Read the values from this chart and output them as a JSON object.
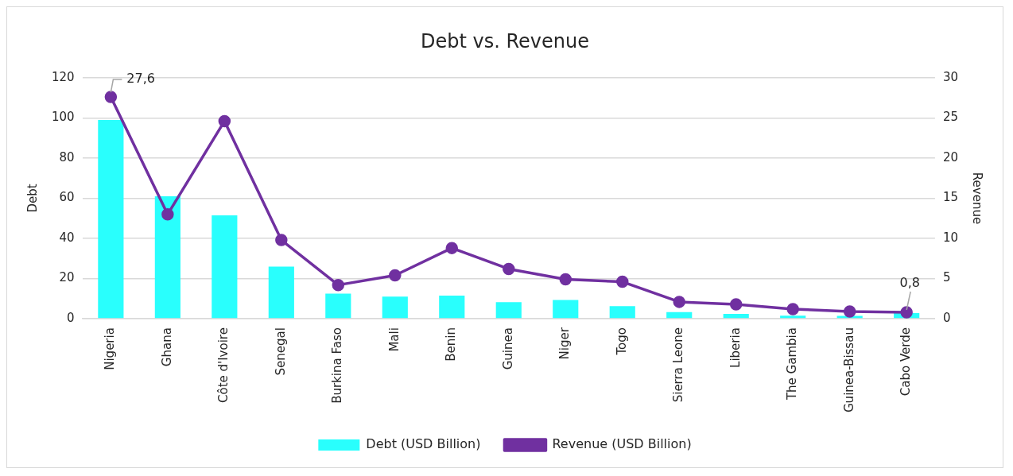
{
  "chart_data": {
    "type": "bar",
    "title": "Debt vs. Revenue",
    "ylabel": "Debt",
    "y2label": "Revenue",
    "categories": [
      "Nigeria",
      "Ghana",
      "Côte d'Ivoire",
      "Senegal",
      "Burkina Faso",
      "Mali",
      "Benin",
      "Guinea",
      "Niger",
      "Togo",
      "Sierra Leone",
      "Liberia",
      "The Gambia",
      "Guinea-Bissau",
      "Cabo Verde"
    ],
    "series": [
      {
        "name": "Debt (USD Billion)",
        "color": "#29fffd",
        "values": [
          99,
          61,
          51.5,
          26,
          12.5,
          11,
          11.5,
          8.3,
          9.3,
          6.3,
          3.3,
          2.4,
          1.5,
          1.4,
          2.8
        ]
      },
      {
        "name": "Revenue (USD Billion)",
        "type": "line",
        "axis": "y2",
        "color": "#7030a0",
        "marker": "circle",
        "values": [
          27.6,
          13.0,
          24.6,
          9.8,
          4.2,
          5.4,
          8.8,
          6.2,
          4.9,
          4.6,
          2.1,
          1.8,
          1.2,
          0.9,
          0.8
        ],
        "value_labels": [
          "27,6",
          null,
          null,
          null,
          null,
          null,
          null,
          null,
          null,
          null,
          null,
          null,
          null,
          null,
          "0,8"
        ]
      }
    ],
    "ylim": [
      0,
      120
    ],
    "yticks": [
      0,
      20,
      40,
      60,
      80,
      100,
      120
    ],
    "y2lim": [
      0,
      30
    ],
    "y2ticks": [
      0,
      5,
      10,
      15,
      20,
      25,
      30
    ],
    "grid": "y",
    "legend": "bottom"
  }
}
